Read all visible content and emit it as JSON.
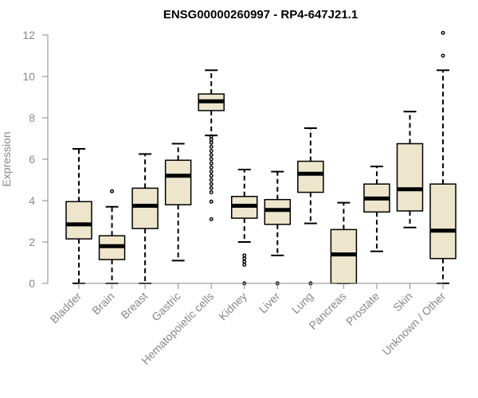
{
  "colors": {
    "box_fill": "#ede6cc",
    "axis": "#888888",
    "line": "#000000"
  },
  "chart_data": {
    "type": "boxplot",
    "title": "ENSG00000260997 - RP4-647J21.1",
    "xlabel": "",
    "ylabel": "Expression",
    "ylim": [
      0,
      12
    ],
    "yticks": [
      "0",
      "2",
      "4",
      "6",
      "8",
      "10",
      "12"
    ],
    "categories": [
      "Bladder",
      "Brain",
      "Breast",
      "Gastric",
      "Hematopoietic cells",
      "Kidney",
      "Liver",
      "Lung",
      "Pancreas",
      "Prostate",
      "Skin",
      "Unknown / Other"
    ],
    "boxes": [
      {
        "name": "Bladder",
        "whisker_low": 0,
        "q1": 2.15,
        "median": 2.85,
        "q3": 3.95,
        "whisker_high": 6.5,
        "outliers": []
      },
      {
        "name": "Brain",
        "whisker_low": 0,
        "q1": 1.15,
        "median": 1.8,
        "q3": 2.3,
        "whisker_high": 3.7,
        "outliers": [
          4.45
        ]
      },
      {
        "name": "Breast",
        "whisker_low": 0,
        "q1": 2.65,
        "median": 3.75,
        "q3": 4.6,
        "whisker_high": 6.25,
        "outliers": []
      },
      {
        "name": "Gastric",
        "whisker_low": 1.1,
        "q1": 3.8,
        "median": 5.2,
        "q3": 5.95,
        "whisker_high": 6.75,
        "outliers": []
      },
      {
        "name": "Hematopoietic cells",
        "whisker_low": 7.15,
        "q1": 8.35,
        "median": 8.8,
        "q3": 9.15,
        "whisker_high": 10.3,
        "outliers": [
          7.1,
          6.95,
          6.8,
          6.6,
          6.4,
          6.2,
          6.0,
          5.8,
          5.6,
          5.4,
          5.2,
          5.0,
          4.8,
          4.6,
          4.4,
          3.95,
          3.1
        ]
      },
      {
        "name": "Kidney",
        "whisker_low": 2.0,
        "q1": 3.15,
        "median": 3.75,
        "q3": 4.2,
        "whisker_high": 5.5,
        "outliers": [
          1.35,
          1.2,
          1.05,
          0.9,
          0.0
        ]
      },
      {
        "name": "Liver",
        "whisker_low": 1.35,
        "q1": 2.85,
        "median": 3.55,
        "q3": 4.05,
        "whisker_high": 5.4,
        "outliers": [
          0.0
        ]
      },
      {
        "name": "Lung",
        "whisker_low": 2.9,
        "q1": 4.4,
        "median": 5.3,
        "q3": 5.9,
        "whisker_high": 7.5,
        "outliers": [
          0.0
        ]
      },
      {
        "name": "Pancreas",
        "whisker_low": 0,
        "q1": 0,
        "median": 1.4,
        "q3": 2.6,
        "whisker_high": 3.9,
        "outliers": []
      },
      {
        "name": "Prostate",
        "whisker_low": 1.55,
        "q1": 3.45,
        "median": 4.1,
        "q3": 4.8,
        "whisker_high": 5.65,
        "outliers": []
      },
      {
        "name": "Skin",
        "whisker_low": 2.7,
        "q1": 3.5,
        "median": 4.55,
        "q3": 6.75,
        "whisker_high": 8.3,
        "outliers": []
      },
      {
        "name": "Unknown / Other",
        "whisker_low": 0,
        "q1": 1.2,
        "median": 2.55,
        "q3": 4.8,
        "whisker_high": 10.3,
        "outliers": [
          11.0,
          12.1
        ]
      }
    ]
  }
}
